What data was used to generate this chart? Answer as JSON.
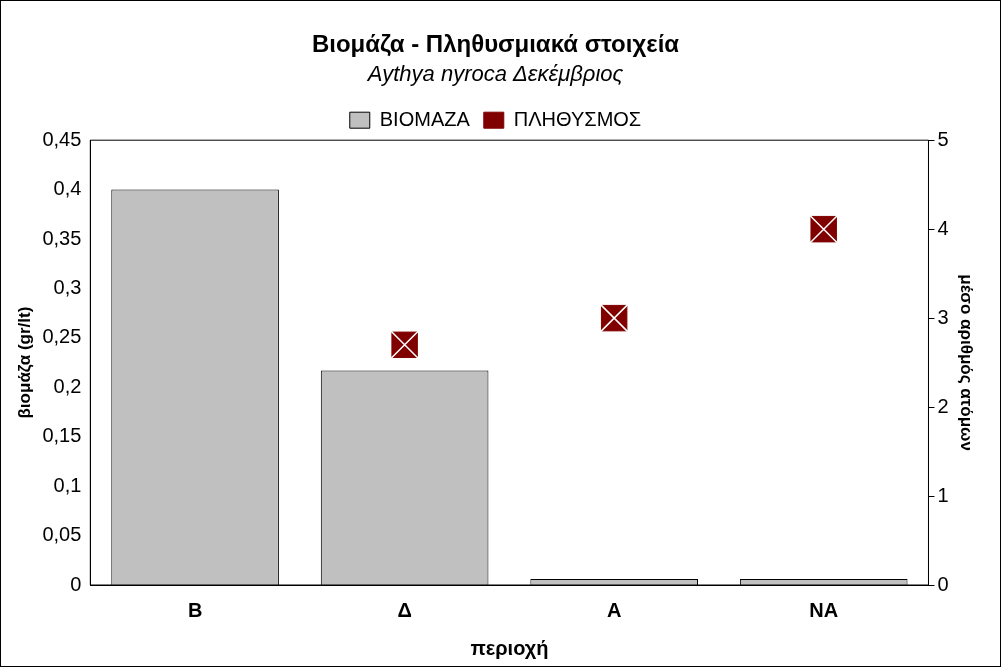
{
  "chart_data": {
    "type": "bar",
    "title": "Βιομάζα - Πληθυσμιακά στοιχεία",
    "subtitle": "Aythya nyroca Δεκέμβριος",
    "xlabel": "περιοχή",
    "ylabel": "βιομάζα (gr/lt)",
    "y2label": "μέσο αριθμός ατόμων",
    "categories": [
      "Β",
      "Δ",
      "Α",
      "ΝΑ"
    ],
    "series": [
      {
        "name": "ΒΙΟΜΑΖΑ",
        "color": "#c0c0c0",
        "values": [
          0.4,
          0.217,
          0.006,
          0.006
        ]
      },
      {
        "name": "ΠΛΗΘΥΣΜΟΣ",
        "type": "scatter",
        "axis": "y2",
        "marker": "square",
        "color": "#800000",
        "values": [
          null,
          2.7,
          3,
          4
        ]
      }
    ],
    "ylim": [
      0,
      0.45
    ],
    "yticks": [
      0,
      {
        "value": 0.05,
        "label": "0,05"
      },
      {
        "value": 0.1,
        "label": "0,1"
      },
      {
        "value": 0.15,
        "label": "0,15"
      },
      {
        "value": 0.2,
        "label": "0,2"
      },
      {
        "value": 0.25,
        "label": "0,25"
      },
      {
        "value": 0.3,
        "label": "0,3"
      },
      {
        "value": 0.35,
        "label": "0,35"
      },
      {
        "value": 0.4,
        "label": "0,4"
      },
      {
        "value": 0.45,
        "label": "0,45"
      }
    ],
    "y2lim": [
      0,
      5
    ],
    "y2ticks": [
      0,
      1,
      2,
      3,
      4,
      5
    ],
    "grid": false,
    "legend": "top"
  }
}
